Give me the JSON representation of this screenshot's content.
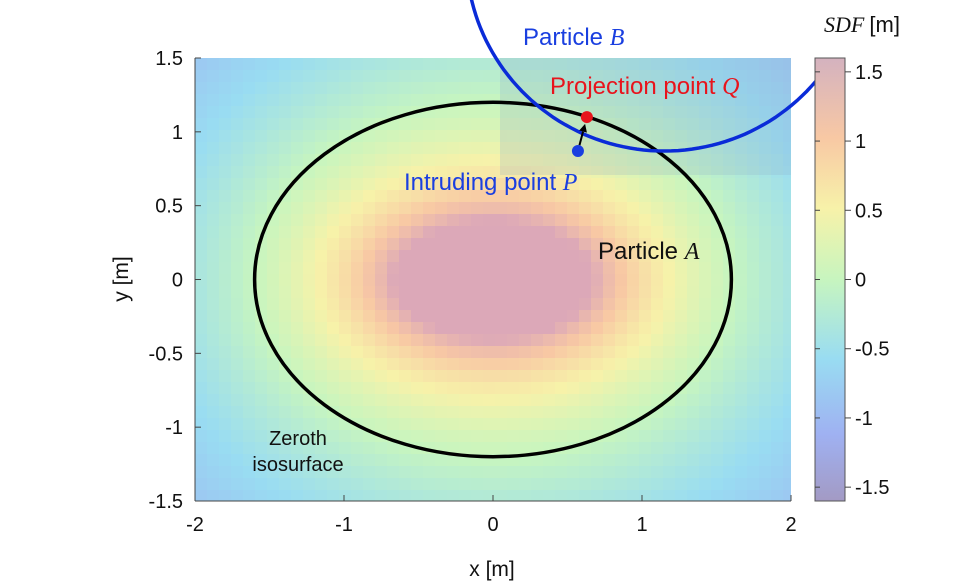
{
  "chart_data": {
    "type": "heatmap",
    "xlabel": "x [m]",
    "ylabel": "y [m]",
    "xlim": [
      -2,
      2
    ],
    "ylim": [
      -1.5,
      1.5
    ],
    "x_ticks": [
      -2,
      -1,
      0,
      1,
      2
    ],
    "y_ticks": [
      -1.5,
      -1,
      -0.5,
      0,
      0.5,
      1,
      1.5
    ],
    "x_tick_labels": [
      "-2",
      "-1",
      "0",
      "1",
      "2"
    ],
    "y_tick_labels": [
      "-1.5",
      "-1",
      "-0.5",
      "0",
      "0.5",
      "1",
      "1.5"
    ],
    "colorbar": {
      "title": "SDF",
      "unit": "[m]",
      "range": [
        -1.6,
        1.6
      ],
      "ticks": [
        -1.5,
        -1,
        -0.5,
        0,
        0.5,
        1,
        1.5
      ],
      "tick_labels": [
        "-1.5",
        "-1",
        "-0.5",
        "0",
        "0.5",
        "1",
        "1.5"
      ],
      "colormap": "jet (semi-transparent)"
    },
    "particle_A": {
      "label_text": "Particle ",
      "label_var": "A",
      "center": [
        0,
        0
      ],
      "semi_axis_x": 1.6,
      "semi_axis_y": 1.2,
      "color": "#000000"
    },
    "particle_B": {
      "label_text": "Particle ",
      "label_var": "B",
      "center": [
        1.15,
        2.2
      ],
      "radius": 1.33,
      "color": "#0a2bd8"
    },
    "projection_point": {
      "label_text": "Projection point ",
      "label_var": "Q",
      "x": 0.63,
      "y": 1.1,
      "color": "#e8141c"
    },
    "intruding_point": {
      "label_text": "Intruding point ",
      "label_var": "P",
      "x": 0.57,
      "y": 0.87,
      "color": "#1a3fe0"
    },
    "annotation": {
      "line1": "Zeroth",
      "line2": "isosurface"
    }
  }
}
